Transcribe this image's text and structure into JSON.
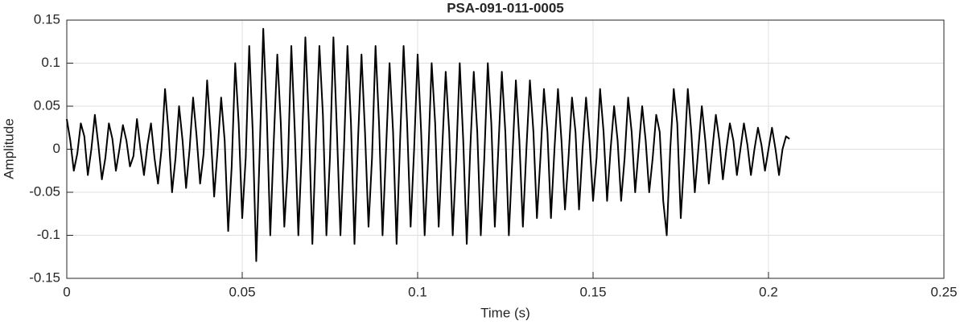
{
  "chart_data": {
    "type": "line",
    "title": "PSA-091-011-0005",
    "x_label": "Time (s)",
    "y_label": "Amplitude",
    "color": "#000000",
    "grid": true,
    "xlim": [
      0,
      0.25
    ],
    "xticks": [
      0,
      0.05,
      0.1,
      0.15,
      0.2,
      0.25
    ],
    "ylim": [
      -0.15,
      0.15
    ],
    "yticks": [
      -0.15,
      -0.1,
      -0.05,
      0,
      0.05,
      0.1,
      0.15
    ],
    "x": [
      0,
      0.001,
      0.002,
      0.003,
      0.004,
      0.005,
      0.006,
      0.007,
      0.008,
      0.009,
      0.01,
      0.011,
      0.012,
      0.013,
      0.014,
      0.015,
      0.016,
      0.017,
      0.018,
      0.019,
      0.02,
      0.021,
      0.022,
      0.023,
      0.024,
      0.025,
      0.026,
      0.027,
      0.028,
      0.029,
      0.03,
      0.031,
      0.032,
      0.033,
      0.034,
      0.035,
      0.036,
      0.037,
      0.038,
      0.039,
      0.04,
      0.041,
      0.042,
      0.043,
      0.044,
      0.045,
      0.046,
      0.047,
      0.048,
      0.049,
      0.05,
      0.051,
      0.052,
      0.053,
      0.054,
      0.055,
      0.056,
      0.057,
      0.058,
      0.059,
      0.06,
      0.061,
      0.062,
      0.063,
      0.064,
      0.065,
      0.066,
      0.067,
      0.068,
      0.069,
      0.07,
      0.071,
      0.072,
      0.073,
      0.074,
      0.075,
      0.076,
      0.077,
      0.078,
      0.079,
      0.08,
      0.081,
      0.082,
      0.083,
      0.084,
      0.085,
      0.086,
      0.087,
      0.088,
      0.089,
      0.09,
      0.091,
      0.092,
      0.093,
      0.094,
      0.095,
      0.096,
      0.097,
      0.098,
      0.099,
      0.1,
      0.101,
      0.102,
      0.103,
      0.104,
      0.105,
      0.106,
      0.107,
      0.108,
      0.109,
      0.11,
      0.111,
      0.112,
      0.113,
      0.114,
      0.115,
      0.116,
      0.117,
      0.118,
      0.119,
      0.12,
      0.121,
      0.122,
      0.123,
      0.124,
      0.125,
      0.126,
      0.127,
      0.128,
      0.129,
      0.13,
      0.131,
      0.132,
      0.133,
      0.134,
      0.135,
      0.136,
      0.137,
      0.138,
      0.139,
      0.14,
      0.141,
      0.142,
      0.143,
      0.144,
      0.145,
      0.146,
      0.147,
      0.148,
      0.149,
      0.15,
      0.151,
      0.152,
      0.153,
      0.154,
      0.155,
      0.156,
      0.157,
      0.158,
      0.159,
      0.16,
      0.161,
      0.162,
      0.163,
      0.164,
      0.165,
      0.166,
      0.167,
      0.168,
      0.169,
      0.17,
      0.171,
      0.172,
      0.173,
      0.174,
      0.175,
      0.176,
      0.177,
      0.178,
      0.179,
      0.18,
      0.181,
      0.182,
      0.183,
      0.184,
      0.185,
      0.186,
      0.187,
      0.188,
      0.189,
      0.19,
      0.191,
      0.192,
      0.193,
      0.194,
      0.195,
      0.196,
      0.197,
      0.198,
      0.199,
      0.2,
      0.201,
      0.202,
      0.203,
      0.204,
      0.205,
      0.206
    ],
    "values": [
      0.035,
      0.01,
      -0.025,
      -0.005,
      0.03,
      0.015,
      -0.03,
      0.0,
      0.04,
      0.005,
      -0.035,
      -0.01,
      0.03,
      0.012,
      -0.025,
      0.0,
      0.028,
      0.01,
      -0.02,
      -0.008,
      0.035,
      0.0,
      -0.03,
      0.005,
      0.03,
      -0.01,
      -0.04,
      0.0,
      0.07,
      0.02,
      -0.05,
      -0.01,
      0.05,
      0.01,
      -0.045,
      0.0,
      0.06,
      0.015,
      -0.04,
      -0.005,
      0.08,
      0.02,
      -0.055,
      0.0,
      0.06,
      0.01,
      -0.095,
      -0.02,
      0.1,
      0.03,
      -0.08,
      -0.01,
      0.12,
      0.02,
      -0.13,
      0.0,
      0.14,
      0.04,
      -0.1,
      0.01,
      0.11,
      0.03,
      -0.09,
      -0.02,
      0.12,
      0.02,
      -0.1,
      0.0,
      0.13,
      0.03,
      -0.11,
      0.01,
      0.12,
      0.04,
      -0.1,
      -0.01,
      0.13,
      0.02,
      -0.1,
      0.0,
      0.12,
      0.03,
      -0.11,
      0.01,
      0.11,
      0.02,
      -0.09,
      -0.01,
      0.12,
      0.03,
      -0.1,
      0.0,
      0.1,
      0.02,
      -0.11,
      0.01,
      0.12,
      0.03,
      -0.09,
      0.0,
      0.11,
      0.02,
      -0.1,
      -0.01,
      0.1,
      0.03,
      -0.09,
      0.0,
      0.09,
      0.02,
      -0.1,
      -0.01,
      0.1,
      0.01,
      -0.11,
      0.0,
      0.09,
      0.02,
      -0.1,
      -0.01,
      0.1,
      0.03,
      -0.09,
      0.0,
      0.09,
      0.02,
      -0.1,
      -0.01,
      0.08,
      0.01,
      -0.09,
      0.0,
      0.08,
      0.02,
      -0.08,
      -0.01,
      0.07,
      0.02,
      -0.08,
      0.0,
      0.07,
      0.01,
      -0.07,
      -0.01,
      0.06,
      0.02,
      -0.07,
      0.0,
      0.06,
      0.01,
      -0.06,
      -0.01,
      0.07,
      0.02,
      -0.06,
      0.0,
      0.05,
      0.01,
      -0.06,
      -0.01,
      0.06,
      0.02,
      -0.05,
      0.0,
      0.05,
      0.01,
      -0.05,
      -0.01,
      0.04,
      0.02,
      -0.06,
      -0.1,
      0.0,
      0.07,
      0.03,
      -0.08,
      -0.01,
      0.07,
      0.02,
      -0.05,
      0.0,
      0.05,
      0.01,
      -0.04,
      0.0,
      0.04,
      0.01,
      -0.035,
      0.0,
      0.03,
      0.01,
      -0.03,
      0.0,
      0.03,
      0.005,
      -0.03,
      0.0,
      0.025,
      0.005,
      -0.025,
      0.0,
      0.025,
      0.0,
      -0.03,
      0.0,
      0.015,
      0.012
    ]
  }
}
